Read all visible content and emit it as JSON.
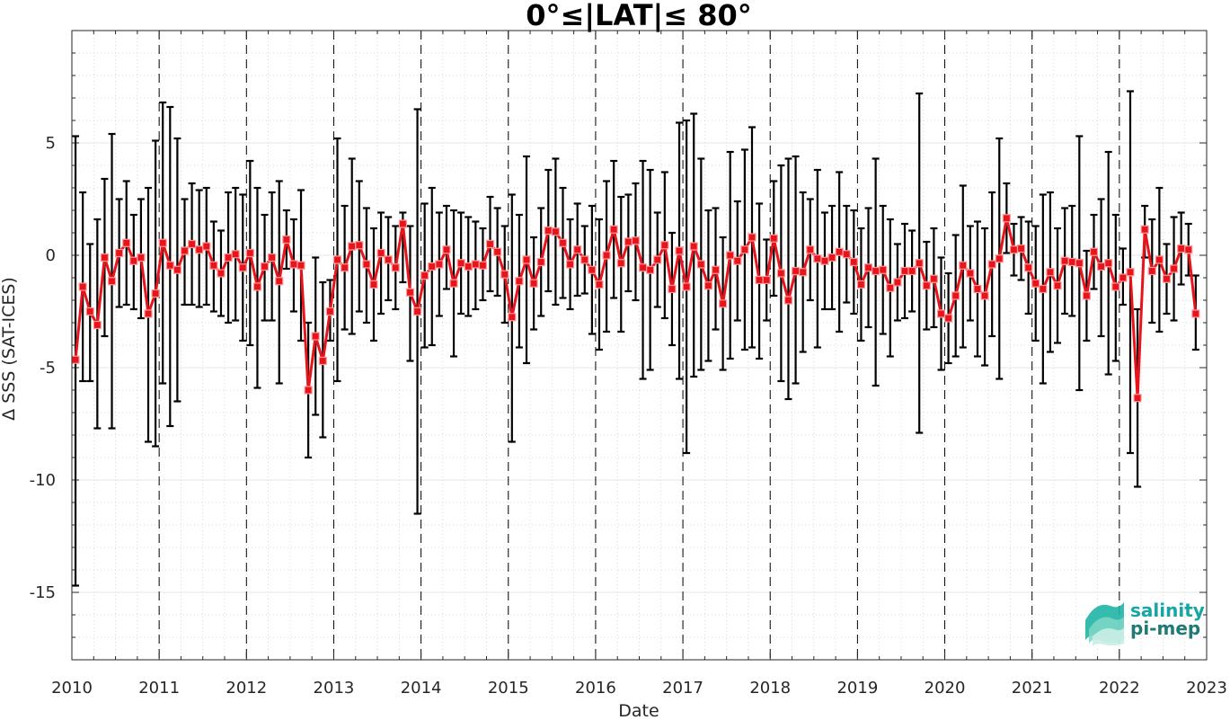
{
  "chart_data": {
    "type": "line",
    "title": "0°≤|LAT|≤ 80°",
    "xlabel": "Date",
    "ylabel": "Δ SSS (SAT-ICES)",
    "xlim": [
      "2010-01-01",
      "2023-01-01"
    ],
    "ylim": [
      -18,
      10
    ],
    "x_ticks": [
      "2010",
      "2011",
      "2012",
      "2013",
      "2014",
      "2015",
      "2016",
      "2017",
      "2018",
      "2019",
      "2020",
      "2021",
      "2022",
      "2023"
    ],
    "y_ticks": [
      -15,
      -10,
      -5,
      0,
      5
    ],
    "grid": "minor dotted",
    "year_separators": "dashed vertical lines at each January",
    "series": [
      {
        "color": "#e8141b",
        "marker": "square",
        "errorbar_color": "#000000",
        "points": [
          {
            "x": "2010-01",
            "y": -4.65,
            "lo": -14.7,
            "hi": 5.3
          },
          {
            "x": "2010-02",
            "y": -1.4,
            "lo": -5.6,
            "hi": 2.8
          },
          {
            "x": "2010-03",
            "y": -2.5,
            "lo": -5.6,
            "hi": 0.5
          },
          {
            "x": "2010-04",
            "y": -3.1,
            "lo": -7.7,
            "hi": 1.6
          },
          {
            "x": "2010-05",
            "y": -0.1,
            "lo": -3.6,
            "hi": 3.4
          },
          {
            "x": "2010-06",
            "y": -1.15,
            "lo": -7.7,
            "hi": 5.4
          },
          {
            "x": "2010-07",
            "y": 0.1,
            "lo": -2.3,
            "hi": 2.5
          },
          {
            "x": "2010-08",
            "y": 0.55,
            "lo": -2.2,
            "hi": 3.3
          },
          {
            "x": "2010-09",
            "y": -0.25,
            "lo": -2.4,
            "hi": 1.8
          },
          {
            "x": "2010-10",
            "y": -0.1,
            "lo": -2.8,
            "hi": 2.5
          },
          {
            "x": "2010-11",
            "y": -2.6,
            "lo": -8.3,
            "hi": 3.0
          },
          {
            "x": "2010-12",
            "y": -1.7,
            "lo": -8.5,
            "hi": 5.1
          },
          {
            "x": "2011-01",
            "y": 0.55,
            "lo": -5.7,
            "hi": 6.8
          },
          {
            "x": "2011-02",
            "y": -0.45,
            "lo": -7.6,
            "hi": 6.6
          },
          {
            "x": "2011-03",
            "y": -0.65,
            "lo": -6.5,
            "hi": 5.2
          },
          {
            "x": "2011-04",
            "y": 0.2,
            "lo": -2.2,
            "hi": 2.5
          },
          {
            "x": "2011-05",
            "y": 0.5,
            "lo": -2.2,
            "hi": 3.2
          },
          {
            "x": "2011-06",
            "y": 0.25,
            "lo": -2.3,
            "hi": 2.9
          },
          {
            "x": "2011-07",
            "y": 0.4,
            "lo": -2.2,
            "hi": 3.0
          },
          {
            "x": "2011-08",
            "y": -0.45,
            "lo": -2.5,
            "hi": 1.5
          },
          {
            "x": "2011-09",
            "y": -0.8,
            "lo": -2.7,
            "hi": 1.1
          },
          {
            "x": "2011-10",
            "y": -0.1,
            "lo": -3.0,
            "hi": 2.8
          },
          {
            "x": "2011-11",
            "y": 0.05,
            "lo": -2.9,
            "hi": 3.0
          },
          {
            "x": "2011-12",
            "y": -0.55,
            "lo": -3.8,
            "hi": 2.7
          },
          {
            "x": "2012-01",
            "y": 0.1,
            "lo": -4.0,
            "hi": 4.2
          },
          {
            "x": "2012-02",
            "y": -1.4,
            "lo": -5.9,
            "hi": 3.0
          },
          {
            "x": "2012-03",
            "y": -0.5,
            "lo": -2.9,
            "hi": 1.8
          },
          {
            "x": "2012-04",
            "y": -0.1,
            "lo": -2.9,
            "hi": 2.8
          },
          {
            "x": "2012-05",
            "y": -1.15,
            "lo": -5.7,
            "hi": 3.3
          },
          {
            "x": "2012-06",
            "y": 0.7,
            "lo": -0.6,
            "hi": 2.0
          },
          {
            "x": "2012-07",
            "y": -0.4,
            "lo": -2.5,
            "hi": 1.6
          },
          {
            "x": "2012-08",
            "y": -0.45,
            "lo": -3.8,
            "hi": 2.9
          },
          {
            "x": "2012-09",
            "y": -6.0,
            "lo": -9.0,
            "hi": -3.0
          },
          {
            "x": "2012-10",
            "y": -3.6,
            "lo": -7.1,
            "hi": -0.1
          },
          {
            "x": "2012-11",
            "y": -4.7,
            "lo": -8.1,
            "hi": -1.2
          },
          {
            "x": "2012-12",
            "y": -2.5,
            "lo": -3.8,
            "hi": -1.1
          },
          {
            "x": "2013-01",
            "y": -0.2,
            "lo": -5.6,
            "hi": 5.2
          },
          {
            "x": "2013-02",
            "y": -0.55,
            "lo": -3.3,
            "hi": 2.2
          },
          {
            "x": "2013-03",
            "y": 0.4,
            "lo": -3.5,
            "hi": 4.3
          },
          {
            "x": "2013-04",
            "y": 0.45,
            "lo": -2.5,
            "hi": 3.3
          },
          {
            "x": "2013-05",
            "y": -0.4,
            "lo": -3.0,
            "hi": 2.1
          },
          {
            "x": "2013-06",
            "y": -1.3,
            "lo": -3.8,
            "hi": 1.2
          },
          {
            "x": "2013-07",
            "y": 0.1,
            "lo": -2.6,
            "hi": 1.9
          },
          {
            "x": "2013-08",
            "y": -0.2,
            "lo": -2.0,
            "hi": 1.7
          },
          {
            "x": "2013-09",
            "y": -0.55,
            "lo": -2.4,
            "hi": 1.3
          },
          {
            "x": "2013-10",
            "y": 1.4,
            "lo": -1.2,
            "hi": 1.9
          },
          {
            "x": "2013-11",
            "y": -1.65,
            "lo": -4.7,
            "hi": 1.3
          },
          {
            "x": "2013-12",
            "y": -2.5,
            "lo": -11.5,
            "hi": 6.5
          },
          {
            "x": "2014-01",
            "y": -0.9,
            "lo": -4.1,
            "hi": 2.3
          },
          {
            "x": "2014-02",
            "y": -0.5,
            "lo": -4.0,
            "hi": 3.0
          },
          {
            "x": "2014-03",
            "y": -0.4,
            "lo": -2.7,
            "hi": 1.9
          },
          {
            "x": "2014-04",
            "y": 0.25,
            "lo": -1.5,
            "hi": 2.2
          },
          {
            "x": "2014-05",
            "y": -1.25,
            "lo": -4.5,
            "hi": 2.0
          },
          {
            "x": "2014-06",
            "y": -0.35,
            "lo": -2.6,
            "hi": 1.9
          },
          {
            "x": "2014-07",
            "y": -0.5,
            "lo": -2.7,
            "hi": 1.7
          },
          {
            "x": "2014-08",
            "y": -0.4,
            "lo": -2.4,
            "hi": 1.5
          },
          {
            "x": "2014-09",
            "y": -0.45,
            "lo": -2.0,
            "hi": 1.2
          },
          {
            "x": "2014-10",
            "y": 0.5,
            "lo": -1.6,
            "hi": 2.6
          },
          {
            "x": "2014-11",
            "y": 0.15,
            "lo": -1.8,
            "hi": 2.1
          },
          {
            "x": "2014-12",
            "y": -0.85,
            "lo": -3.0,
            "hi": 1.3
          },
          {
            "x": "2015-01",
            "y": -2.75,
            "lo": -8.3,
            "hi": 2.7
          },
          {
            "x": "2015-02",
            "y": -1.15,
            "lo": -4.1,
            "hi": 1.8
          },
          {
            "x": "2015-03",
            "y": -0.2,
            "lo": -4.8,
            "hi": 4.4
          },
          {
            "x": "2015-04",
            "y": -1.25,
            "lo": -3.3,
            "hi": 0.8
          },
          {
            "x": "2015-05",
            "y": -0.3,
            "lo": -2.7,
            "hi": 2.1
          },
          {
            "x": "2015-06",
            "y": 1.1,
            "lo": -1.6,
            "hi": 3.8
          },
          {
            "x": "2015-07",
            "y": 1.05,
            "lo": -2.2,
            "hi": 4.3
          },
          {
            "x": "2015-08",
            "y": 0.55,
            "lo": -1.9,
            "hi": 3.0
          },
          {
            "x": "2015-09",
            "y": -0.4,
            "lo": -2.4,
            "hi": 1.6
          },
          {
            "x": "2015-10",
            "y": 0.25,
            "lo": -1.8,
            "hi": 2.3
          },
          {
            "x": "2015-11",
            "y": -0.2,
            "lo": -1.7,
            "hi": 1.3
          },
          {
            "x": "2015-12",
            "y": -0.65,
            "lo": -3.5,
            "hi": 2.2
          },
          {
            "x": "2016-01",
            "y": -1.3,
            "lo": -4.2,
            "hi": 1.6
          },
          {
            "x": "2016-02",
            "y": 0.0,
            "lo": -3.4,
            "hi": 3.3
          },
          {
            "x": "2016-03",
            "y": 1.15,
            "lo": -1.9,
            "hi": 4.2
          },
          {
            "x": "2016-04",
            "y": -0.35,
            "lo": -3.4,
            "hi": 2.6
          },
          {
            "x": "2016-05",
            "y": 0.6,
            "lo": -1.6,
            "hi": 2.7
          },
          {
            "x": "2016-06",
            "y": 0.65,
            "lo": -2.0,
            "hi": 3.2
          },
          {
            "x": "2016-07",
            "y": -0.55,
            "lo": -5.5,
            "hi": 4.2
          },
          {
            "x": "2016-08",
            "y": -0.65,
            "lo": -5.1,
            "hi": 3.8
          },
          {
            "x": "2016-09",
            "y": -0.2,
            "lo": -2.3,
            "hi": 1.9
          },
          {
            "x": "2016-10",
            "y": 0.45,
            "lo": -2.8,
            "hi": 3.7
          },
          {
            "x": "2016-11",
            "y": -1.5,
            "lo": -4.0,
            "hi": 1.0
          },
          {
            "x": "2016-12",
            "y": 0.2,
            "lo": -5.5,
            "hi": 5.9
          },
          {
            "x": "2017-01",
            "y": -1.4,
            "lo": -8.8,
            "hi": 6.0
          },
          {
            "x": "2017-02",
            "y": 0.4,
            "lo": -5.4,
            "hi": 6.3
          },
          {
            "x": "2017-03",
            "y": -0.4,
            "lo": -5.1,
            "hi": 4.3
          },
          {
            "x": "2017-04",
            "y": -1.35,
            "lo": -4.7,
            "hi": 2.0
          },
          {
            "x": "2017-05",
            "y": -0.65,
            "lo": -3.3,
            "hi": 2.1
          },
          {
            "x": "2017-06",
            "y": -2.15,
            "lo": -5.1,
            "hi": 0.8
          },
          {
            "x": "2017-07",
            "y": 0.0,
            "lo": -4.6,
            "hi": 4.6
          },
          {
            "x": "2017-08",
            "y": -0.25,
            "lo": -2.9,
            "hi": 2.4
          },
          {
            "x": "2017-09",
            "y": 0.25,
            "lo": -4.2,
            "hi": 4.7
          },
          {
            "x": "2017-10",
            "y": 0.8,
            "lo": -4.1,
            "hi": 5.7
          },
          {
            "x": "2017-11",
            "y": -1.1,
            "lo": -4.6,
            "hi": 2.3
          },
          {
            "x": "2017-12",
            "y": -1.1,
            "lo": -2.9,
            "hi": 0.7
          },
          {
            "x": "2018-01",
            "y": 0.75,
            "lo": -1.8,
            "hi": 3.3
          },
          {
            "x": "2018-02",
            "y": -0.8,
            "lo": -5.6,
            "hi": 4.0
          },
          {
            "x": "2018-03",
            "y": -2.0,
            "lo": -6.4,
            "hi": 4.3
          },
          {
            "x": "2018-04",
            "y": -0.7,
            "lo": -5.7,
            "hi": 4.4
          },
          {
            "x": "2018-05",
            "y": -0.75,
            "lo": -4.3,
            "hi": 2.8
          },
          {
            "x": "2018-06",
            "y": 0.25,
            "lo": -2.0,
            "hi": 2.5
          },
          {
            "x": "2018-07",
            "y": -0.15,
            "lo": -4.1,
            "hi": 3.8
          },
          {
            "x": "2018-08",
            "y": -0.25,
            "lo": -2.4,
            "hi": 1.9
          },
          {
            "x": "2018-09",
            "y": -0.1,
            "lo": -2.4,
            "hi": 2.2
          },
          {
            "x": "2018-10",
            "y": 0.15,
            "lo": -3.4,
            "hi": 3.7
          },
          {
            "x": "2018-11",
            "y": 0.05,
            "lo": -2.1,
            "hi": 2.2
          },
          {
            "x": "2018-12",
            "y": -0.3,
            "lo": -2.6,
            "hi": 2.0
          },
          {
            "x": "2019-01",
            "y": -1.3,
            "lo": -3.8,
            "hi": 1.2
          },
          {
            "x": "2019-02",
            "y": -0.55,
            "lo": -3.2,
            "hi": 2.1
          },
          {
            "x": "2019-03",
            "y": -0.7,
            "lo": -5.8,
            "hi": 4.3
          },
          {
            "x": "2019-04",
            "y": -0.65,
            "lo": -3.5,
            "hi": 2.2
          },
          {
            "x": "2019-05",
            "y": -1.45,
            "lo": -4.5,
            "hi": 1.6
          },
          {
            "x": "2019-06",
            "y": -1.2,
            "lo": -2.9,
            "hi": 0.5
          },
          {
            "x": "2019-07",
            "y": -0.7,
            "lo": -2.8,
            "hi": 1.4
          },
          {
            "x": "2019-08",
            "y": -0.7,
            "lo": -2.5,
            "hi": 1.1
          },
          {
            "x": "2019-09",
            "y": -0.35,
            "lo": -7.9,
            "hi": 7.2
          },
          {
            "x": "2019-10",
            "y": -1.35,
            "lo": -3.3,
            "hi": 0.6
          },
          {
            "x": "2019-11",
            "y": -1.05,
            "lo": -3.2,
            "hi": 1.2
          },
          {
            "x": "2019-12",
            "y": -2.6,
            "lo": -5.1,
            "hi": -0.1
          },
          {
            "x": "2020-01",
            "y": -2.8,
            "lo": -4.8,
            "hi": -0.8
          },
          {
            "x": "2020-02",
            "y": -1.8,
            "lo": -4.5,
            "hi": 0.9
          },
          {
            "x": "2020-03",
            "y": -0.45,
            "lo": -4.1,
            "hi": 3.1
          },
          {
            "x": "2020-04",
            "y": -0.8,
            "lo": -2.9,
            "hi": 1.3
          },
          {
            "x": "2020-05",
            "y": -1.5,
            "lo": -4.5,
            "hi": 1.5
          },
          {
            "x": "2020-06",
            "y": -1.8,
            "lo": -4.9,
            "hi": 1.2
          },
          {
            "x": "2020-07",
            "y": -0.4,
            "lo": -3.6,
            "hi": 2.8
          },
          {
            "x": "2020-08",
            "y": -0.15,
            "lo": -5.5,
            "hi": 5.2
          },
          {
            "x": "2020-09",
            "y": 1.65,
            "lo": 0.1,
            "hi": 3.2
          },
          {
            "x": "2020-10",
            "y": 0.25,
            "lo": -0.9,
            "hi": 1.4
          },
          {
            "x": "2020-11",
            "y": 0.3,
            "lo": -1.1,
            "hi": 1.7
          },
          {
            "x": "2020-12",
            "y": -0.55,
            "lo": -2.6,
            "hi": 1.5
          },
          {
            "x": "2021-01",
            "y": -1.25,
            "lo": -3.8,
            "hi": 1.3
          },
          {
            "x": "2021-02",
            "y": -1.5,
            "lo": -5.7,
            "hi": 2.7
          },
          {
            "x": "2021-03",
            "y": -0.75,
            "lo": -4.3,
            "hi": 2.8
          },
          {
            "x": "2021-04",
            "y": -1.35,
            "lo": -3.9,
            "hi": 1.2
          },
          {
            "x": "2021-05",
            "y": -0.25,
            "lo": -2.6,
            "hi": 2.1
          },
          {
            "x": "2021-06",
            "y": -0.3,
            "lo": -2.7,
            "hi": 2.2
          },
          {
            "x": "2021-07",
            "y": -0.35,
            "lo": -6.0,
            "hi": 5.3
          },
          {
            "x": "2021-08",
            "y": -1.8,
            "lo": -3.8,
            "hi": 0.2
          },
          {
            "x": "2021-09",
            "y": 0.15,
            "lo": -1.5,
            "hi": 1.8
          },
          {
            "x": "2021-10",
            "y": -0.5,
            "lo": -3.6,
            "hi": 2.5
          },
          {
            "x": "2021-11",
            "y": -0.35,
            "lo": -5.3,
            "hi": 4.6
          },
          {
            "x": "2021-12",
            "y": -1.4,
            "lo": -4.7,
            "hi": 1.8
          },
          {
            "x": "2022-01",
            "y": -1.0,
            "lo": -2.2,
            "hi": 0.3
          },
          {
            "x": "2022-02",
            "y": -0.75,
            "lo": -8.8,
            "hi": 7.3
          },
          {
            "x": "2022-03",
            "y": -6.35,
            "lo": -10.3,
            "hi": -2.4
          },
          {
            "x": "2022-04",
            "y": 1.15,
            "lo": -0.1,
            "hi": 2.2
          },
          {
            "x": "2022-05",
            "y": -0.7,
            "lo": -3.0,
            "hi": 1.6
          },
          {
            "x": "2022-06",
            "y": -0.2,
            "lo": -3.4,
            "hi": 3.0
          },
          {
            "x": "2022-07",
            "y": -1.05,
            "lo": -2.6,
            "hi": 0.5
          },
          {
            "x": "2022-08",
            "y": -0.6,
            "lo": -2.9,
            "hi": 1.7
          },
          {
            "x": "2022-09",
            "y": 0.3,
            "lo": -1.3,
            "hi": 1.9
          },
          {
            "x": "2022-10",
            "y": 0.25,
            "lo": -0.9,
            "hi": 1.4
          },
          {
            "x": "2022-11",
            "y": -2.6,
            "lo": -4.2,
            "hi": -0.9
          }
        ]
      }
    ]
  },
  "logo": {
    "line1": "salinity",
    "line2": "pi-mep",
    "line1_color": "#16a6a4",
    "line2_color": "#1f7a76"
  }
}
